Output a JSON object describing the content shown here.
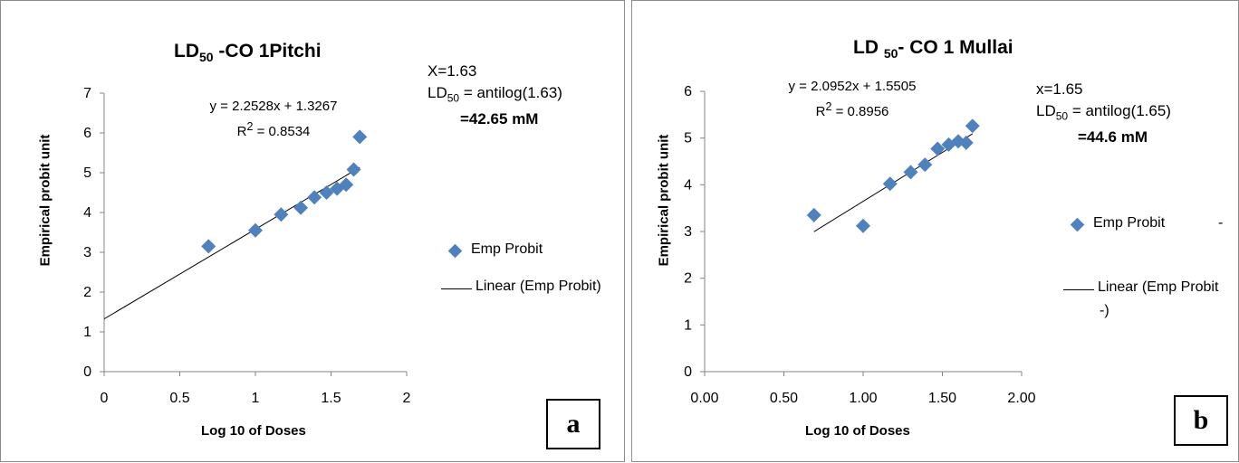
{
  "chart_data": [
    {
      "id": "a",
      "type": "scatter",
      "title_main": "LD",
      "title_sub": "50",
      "title_rest": " -CO 1Pitchi",
      "xlabel": "Log 10 of Doses",
      "ylabel": "Empirical probit unit",
      "xlim": [
        0,
        2
      ],
      "ylim": [
        0,
        7
      ],
      "xticks": [
        "0",
        "0.5",
        "1",
        "1.5",
        "2"
      ],
      "xtick_values": [
        0,
        0.5,
        1,
        1.5,
        2
      ],
      "yticks": [
        "0",
        "1",
        "2",
        "3",
        "4",
        "5",
        "6",
        "7"
      ],
      "ytick_values": [
        0,
        1,
        2,
        3,
        4,
        5,
        6,
        7
      ],
      "grid": false,
      "series": [
        {
          "name": "Emp Probit",
          "marker": "diamond",
          "color": "#4f81bd",
          "x": [
            0.69,
            1.0,
            1.17,
            1.3,
            1.39,
            1.47,
            1.54,
            1.6,
            1.65,
            1.69
          ],
          "y": [
            3.15,
            3.55,
            3.95,
            4.12,
            4.38,
            4.5,
            4.6,
            4.7,
            5.08,
            5.9
          ]
        }
      ],
      "trendline": {
        "name": "Linear (Emp Probit)",
        "slope": 2.2528,
        "intercept": 1.3267,
        "x_range": [
          0,
          1.69
        ],
        "color": "#000000"
      },
      "equation": "y = 2.2528x + 1.3267",
      "r2_label": "R",
      "r2_sup": "2",
      "r2_value": " = 0.8534",
      "annotation": {
        "line1": "X=1.63",
        "line2_main": "LD",
        "line2_sub": "50",
        "line2_rest": " = antilog(1.63)",
        "line3": "=42.65 mM"
      },
      "legend": {
        "marker_label": "Emp Probit",
        "line_label": "Linear (Emp Probit)",
        "line_label_cont": "",
        "dash": ""
      },
      "tag": "a"
    },
    {
      "id": "b",
      "type": "scatter",
      "title_main": "LD ",
      "title_sub": "50",
      "title_rest": "- CO 1 Mullai",
      "xlabel": "Log 10 of  Doses",
      "ylabel": "Empirical probit unit",
      "xlim": [
        0,
        2
      ],
      "ylim": [
        0,
        6
      ],
      "xticks": [
        "0.00",
        "0.50",
        "1.00",
        "1.50",
        "2.00"
      ],
      "xtick_values": [
        0,
        0.5,
        1,
        1.5,
        2
      ],
      "yticks": [
        "0",
        "1",
        "2",
        "3",
        "4",
        "5",
        "6"
      ],
      "ytick_values": [
        0,
        1,
        2,
        3,
        4,
        5,
        6
      ],
      "grid": false,
      "series": [
        {
          "name": "Emp Probit",
          "marker": "diamond",
          "color": "#4f81bd",
          "x": [
            0.69,
            1.0,
            1.17,
            1.3,
            1.39,
            1.47,
            1.54,
            1.6,
            1.65,
            1.69
          ],
          "y": [
            3.35,
            3.12,
            4.02,
            4.27,
            4.43,
            4.77,
            4.86,
            4.93,
            4.9,
            5.26
          ]
        }
      ],
      "trendline": {
        "name": "Linear (Emp Probit -)",
        "slope": 2.0952,
        "intercept": 1.5505,
        "x_range": [
          0.69,
          1.69
        ],
        "color": "#000000"
      },
      "equation": "y = 2.0952x + 1.5505",
      "r2_label": "R",
      "r2_sup": "2",
      "r2_value": " = 0.8956",
      "annotation": {
        "line1": "x=1.65",
        "line2_main": "LD",
        "line2_sub": "50",
        "line2_rest": " = antilog(1.65)",
        "line3": "=44.6 mM"
      },
      "legend": {
        "marker_label": "Emp Probit",
        "line_label": "Linear (Emp Probit",
        "line_label_cont": "-)",
        "dash": "-"
      },
      "tag": "b"
    }
  ]
}
